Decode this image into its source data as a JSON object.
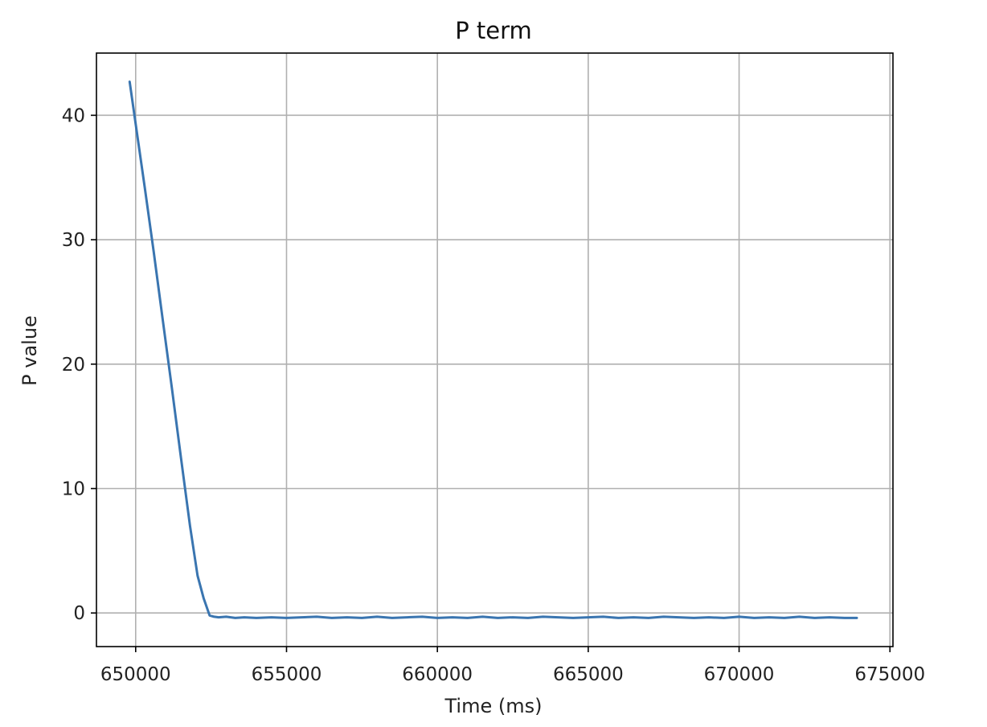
{
  "chart_data": {
    "type": "line",
    "title": "P term",
    "xlabel": "Time (ms)",
    "ylabel": "P value",
    "xlim": [
      648700,
      675100
    ],
    "ylim": [
      -2.7,
      45
    ],
    "xticks": [
      650000,
      655000,
      660000,
      665000,
      670000,
      675000
    ],
    "xtick_labels": [
      "650000",
      "655000",
      "660000",
      "665000",
      "670000",
      "675000"
    ],
    "yticks": [
      0,
      10,
      20,
      30,
      40
    ],
    "ytick_labels": [
      "0",
      "10",
      "20",
      "30",
      "40"
    ],
    "grid": true,
    "series": [
      {
        "name": "P term",
        "color": "#3a75b0",
        "x": [
          649800,
          650000,
          650300,
          650600,
          650900,
          651200,
          651500,
          651800,
          652050,
          652250,
          652450,
          652600,
          652750,
          653000,
          653300,
          653600,
          654000,
          654500,
          655000,
          655500,
          656000,
          656500,
          657000,
          657500,
          658000,
          658500,
          659000,
          659500,
          660000,
          660500,
          661000,
          661500,
          662000,
          662500,
          663000,
          663500,
          664000,
          664500,
          665000,
          665500,
          666000,
          666500,
          667000,
          667500,
          668000,
          668500,
          669000,
          669500,
          670000,
          670500,
          671000,
          671500,
          672000,
          672500,
          673000,
          673500,
          673900
        ],
        "values": [
          42.7,
          39.3,
          34.2,
          29.0,
          23.5,
          18.1,
          12.5,
          7.0,
          3.0,
          1.2,
          -0.2,
          -0.3,
          -0.35,
          -0.3,
          -0.4,
          -0.35,
          -0.4,
          -0.35,
          -0.4,
          -0.35,
          -0.3,
          -0.4,
          -0.35,
          -0.4,
          -0.3,
          -0.4,
          -0.35,
          -0.3,
          -0.4,
          -0.35,
          -0.4,
          -0.3,
          -0.4,
          -0.35,
          -0.4,
          -0.3,
          -0.35,
          -0.4,
          -0.35,
          -0.3,
          -0.4,
          -0.35,
          -0.4,
          -0.3,
          -0.35,
          -0.4,
          -0.35,
          -0.4,
          -0.3,
          -0.4,
          -0.35,
          -0.4,
          -0.3,
          -0.4,
          -0.35,
          -0.4,
          -0.4
        ]
      }
    ]
  }
}
